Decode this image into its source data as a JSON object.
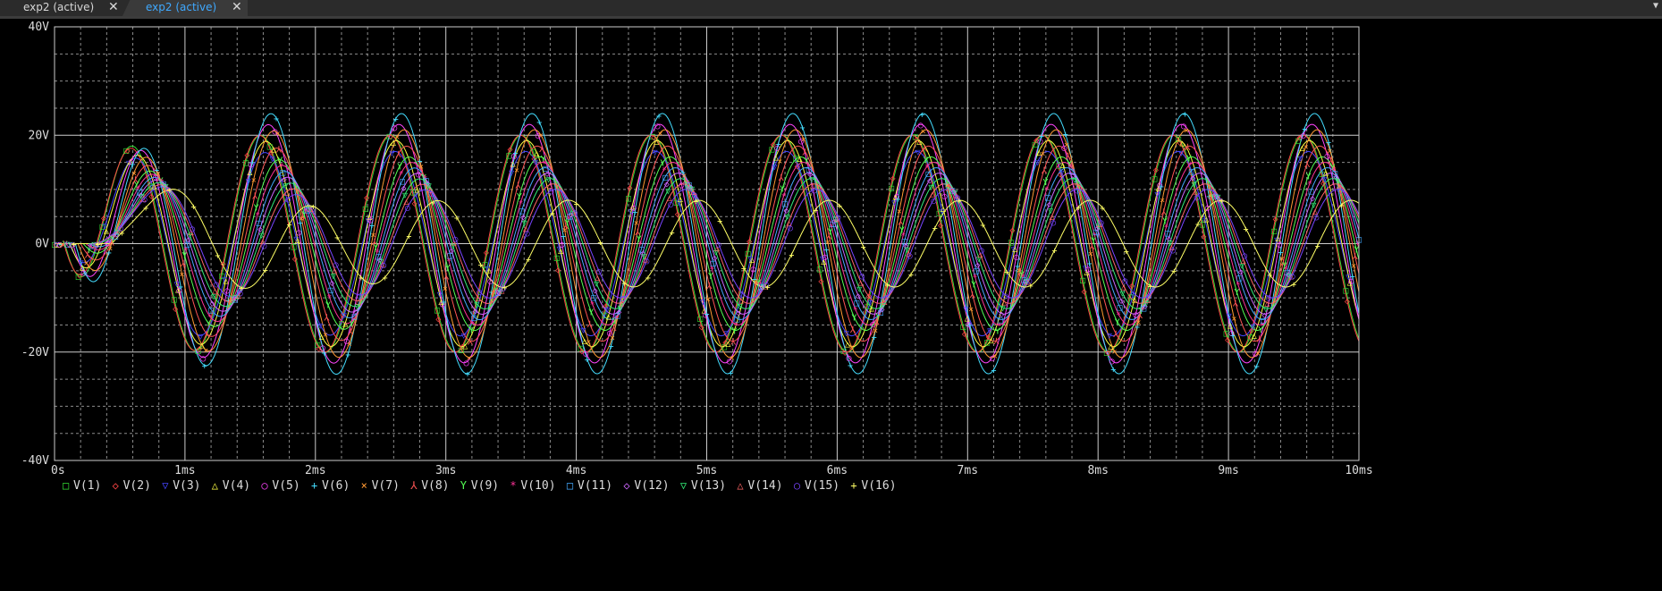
{
  "tabs": [
    {
      "label": "exp2 (active)",
      "active": false
    },
    {
      "label": "exp2 (active)",
      "active": true
    }
  ],
  "icons": {
    "tab_close": "close-icon",
    "tab_menu": "chevron-down-icon"
  },
  "chart_data": {
    "type": "line",
    "title": "",
    "xlabel": "",
    "ylabel": "",
    "xlim": [
      0,
      10
    ],
    "ylim": [
      -40,
      40
    ],
    "x_unit": "ms",
    "y_unit": "V",
    "x_ticks": [
      {
        "value": 0,
        "label": "0s"
      },
      {
        "value": 1,
        "label": "1ms"
      },
      {
        "value": 2,
        "label": "2ms"
      },
      {
        "value": 3,
        "label": "3ms"
      },
      {
        "value": 4,
        "label": "4ms"
      },
      {
        "value": 5,
        "label": "5ms"
      },
      {
        "value": 6,
        "label": "6ms"
      },
      {
        "value": 7,
        "label": "7ms"
      },
      {
        "value": 8,
        "label": "8ms"
      },
      {
        "value": 9,
        "label": "9ms"
      },
      {
        "value": 10,
        "label": "10ms"
      }
    ],
    "y_ticks": [
      {
        "value": 40,
        "label": "40V"
      },
      {
        "value": 20,
        "label": "20V"
      },
      {
        "value": 0,
        "label": "0V"
      },
      {
        "value": -20,
        "label": "-20V"
      },
      {
        "value": -40,
        "label": "-40V"
      }
    ],
    "grid": true,
    "legend_position": "bottom",
    "background": "#000000",
    "grid_color": "#bbbbbb",
    "steady_state_frequency_khz": 1.0,
    "series": [
      {
        "name": "V(1)",
        "marker": "□",
        "color": "#33dd33",
        "steady_amplitude": 20.0,
        "peak_time_ms": 0.2,
        "phase_deg": 0
      },
      {
        "name": "V(2)",
        "marker": "◇",
        "color": "#ff4444",
        "steady_amplitude": 20.0,
        "peak_time_ms": 0.18,
        "phase_deg": -22
      },
      {
        "name": "V(3)",
        "marker": "▽",
        "color": "#4444ff",
        "steady_amplitude": 17.0,
        "peak_time_ms": 0.28,
        "phase_deg": -45
      },
      {
        "name": "V(4)",
        "marker": "△",
        "color": "#ffff44",
        "steady_amplitude": 19.0,
        "peak_time_ms": 0.3,
        "phase_deg": -67
      },
      {
        "name": "V(5)",
        "marker": "○",
        "color": "#ff44ff",
        "steady_amplitude": 22.0,
        "peak_time_ms": 0.35,
        "phase_deg": -90
      },
      {
        "name": "V(6)",
        "marker": "+",
        "color": "#44ddff",
        "steady_amplitude": 24.0,
        "peak_time_ms": 0.4,
        "phase_deg": -112
      },
      {
        "name": "V(7)",
        "marker": "×",
        "color": "#ff9933",
        "steady_amplitude": 21.0,
        "peak_time_ms": 0.45,
        "phase_deg": -135
      },
      {
        "name": "V(8)",
        "marker": "⅄",
        "color": "#ff5555",
        "steady_amplitude": 18.0,
        "peak_time_ms": 0.5,
        "phase_deg": -157
      },
      {
        "name": "V(9)",
        "marker": "Y",
        "color": "#55ff55",
        "steady_amplitude": 16.0,
        "peak_time_ms": 0.55,
        "phase_deg": -180
      },
      {
        "name": "V(10)",
        "marker": "*",
        "color": "#ff3399",
        "steady_amplitude": 15.0,
        "peak_time_ms": 0.6,
        "phase_deg": -202
      },
      {
        "name": "V(11)",
        "marker": "□",
        "color": "#44aaff",
        "steady_amplitude": 14.0,
        "peak_time_ms": 0.65,
        "phase_deg": -225
      },
      {
        "name": "V(12)",
        "marker": "◇",
        "color": "#cc66ff",
        "steady_amplitude": 13.0,
        "peak_time_ms": 0.7,
        "phase_deg": -247
      },
      {
        "name": "V(13)",
        "marker": "▽",
        "color": "#33ee77",
        "steady_amplitude": 12.0,
        "peak_time_ms": 0.75,
        "phase_deg": -270
      },
      {
        "name": "V(14)",
        "marker": "△",
        "color": "#ff6666",
        "steady_amplitude": 11.0,
        "peak_time_ms": 0.8,
        "phase_deg": -292
      },
      {
        "name": "V(15)",
        "marker": "○",
        "color": "#7744ff",
        "steady_amplitude": 10.0,
        "peak_time_ms": 0.85,
        "phase_deg": -315
      },
      {
        "name": "V(16)",
        "marker": "+",
        "color": "#ffff66",
        "steady_amplitude": 8.0,
        "peak_time_ms": 1.1,
        "phase_deg": -337
      }
    ]
  }
}
